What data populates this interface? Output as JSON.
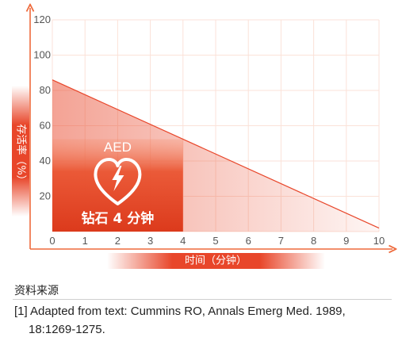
{
  "chart_data": {
    "type": "line",
    "title": "",
    "xlabel": "时间（分钟）",
    "ylabel": "存活率（%）",
    "x_ticks": [
      0,
      1,
      2,
      3,
      4,
      5,
      6,
      7,
      8,
      9,
      10
    ],
    "y_ticks": [
      20,
      40,
      60,
      80,
      100,
      120
    ],
    "xlim": [
      0,
      10
    ],
    "ylim": [
      0,
      120
    ],
    "grid": true,
    "series": [
      {
        "x": [
          0,
          10
        ],
        "y": [
          86,
          2
        ]
      }
    ],
    "highlight_region": {
      "x_range": [
        0,
        4
      ],
      "top_label": "AED",
      "label": "钻石 4 分钟",
      "icon": "heart-lightning-icon"
    },
    "colors": {
      "accent": "#e8462a",
      "axis": "#ee6a3c",
      "grid": "#fbe2d8"
    }
  },
  "sources": {
    "title": "资料来源",
    "ref_line1": "[1] Adapted from text: Cummins RO, Annals Emerg Med. 1989,",
    "ref_line2": "18:1269-1275."
  }
}
